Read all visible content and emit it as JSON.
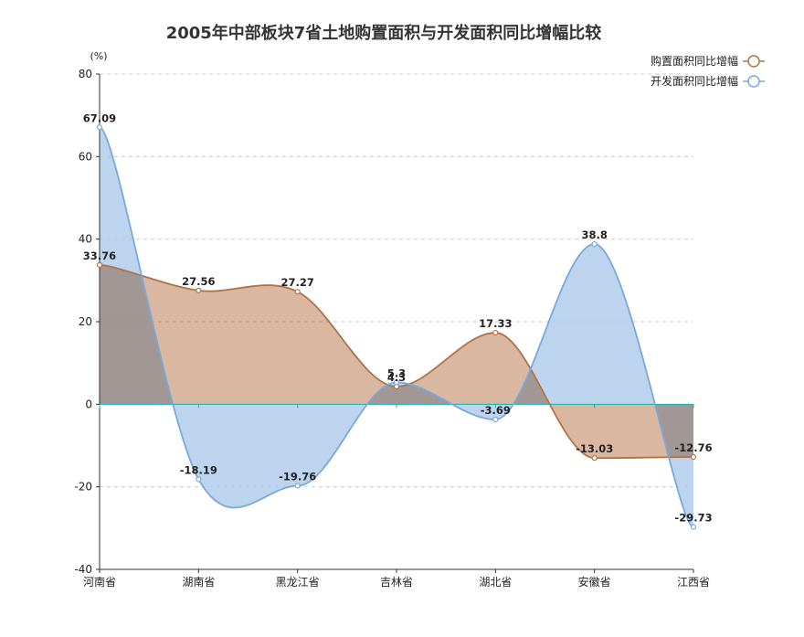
{
  "chart_data": {
    "type": "area",
    "title": "2005年中部板块7省土地购置面积与开发面积同比增幅比较",
    "y_unit": "(%)",
    "categories": [
      "河南省",
      "湖南省",
      "黑龙江省",
      "吉林省",
      "湖北省",
      "安徽省",
      "江西省"
    ],
    "series": [
      {
        "name": "购置面积同比增幅",
        "values": [
          33.76,
          27.56,
          27.27,
          4.3,
          17.33,
          -13.03,
          -12.76
        ],
        "color": "#b07347",
        "fill": "#d4aa8f"
      },
      {
        "name": "开发面积同比增幅",
        "values": [
          67.09,
          -18.19,
          -19.76,
          5.3,
          -3.69,
          38.8,
          -29.73
        ],
        "color": "#7aa8dc",
        "fill": "#adc9ea"
      }
    ],
    "ylim": [
      -40,
      80
    ],
    "y_ticks": [
      -40,
      -20,
      0,
      20,
      40,
      60,
      80
    ],
    "grid": true,
    "legend_position": "top-right",
    "labels": {
      "title": "2005年中部板块7省土地购置面积与开发面积同比增幅比较",
      "unit": "(%)"
    }
  }
}
